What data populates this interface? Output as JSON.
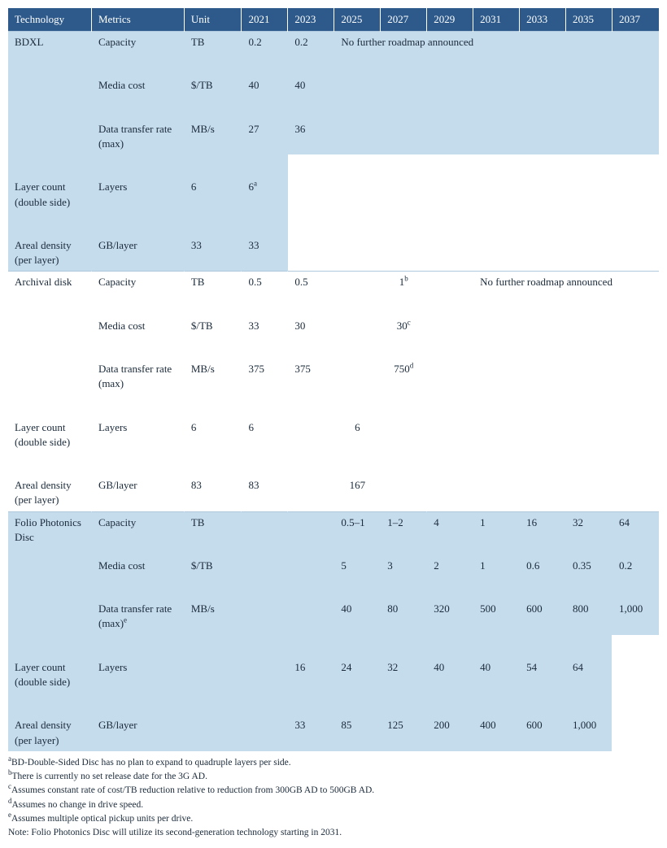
{
  "headers": {
    "technology": "Technology",
    "metrics": "Metrics",
    "unit": "Unit",
    "years": [
      "2021",
      "2023",
      "2025",
      "2027",
      "2029",
      "2031",
      "2033",
      "2035",
      "2037"
    ]
  },
  "colors": {
    "header_bg": "#2d5a8a",
    "header_fg": "#ffffff",
    "band_light": "#c5dced",
    "band_white": "#ffffff",
    "text": "#1a2a3a"
  },
  "no_roadmap_text": "No further roadmap announced",
  "technologies": [
    {
      "name": "BDXL",
      "band": "light",
      "rows": [
        {
          "metric": "Capacity",
          "unit": "TB",
          "cells": {
            "2021": "0.2",
            "2023": "0.2"
          }
        },
        {
          "metric": "Media cost",
          "unit": "$/TB",
          "cells": {
            "2021": "40",
            "2023": "40"
          }
        },
        {
          "metric": "Data transfer rate (max)",
          "unit": "MB/s",
          "cells": {
            "2021": "27",
            "2023": "36"
          }
        },
        {
          "metric": "Layer count (double side)",
          "unit": "Layers",
          "cells": {
            "2021": "6",
            "2023": "6",
            "2023_sup": "a"
          }
        },
        {
          "metric": "Areal density (per layer)",
          "unit": "GB/layer",
          "cells": {
            "2021": "33",
            "2023": "33"
          }
        }
      ],
      "no_roadmap_span_from": "2025"
    },
    {
      "name": "Archival disk",
      "band": "white",
      "rows": [
        {
          "metric": "Capacity",
          "unit": "TB",
          "cells": {
            "2021": "0.5",
            "2023": "0.5",
            "mid": "1",
            "mid_sup": "b"
          }
        },
        {
          "metric": "Media cost",
          "unit": "$/TB",
          "cells": {
            "2021": "33",
            "2023": "30",
            "mid": "30",
            "mid_sup": "c"
          }
        },
        {
          "metric": "Data transfer rate (max)",
          "unit": "MB/s",
          "cells": {
            "2021": "375",
            "2023": "375",
            "mid": "750",
            "mid_sup": "d"
          }
        },
        {
          "metric": "Layer count (double side)",
          "unit": "Layers",
          "cells": {
            "2021": "6",
            "2023": "6",
            "mid": "6"
          }
        },
        {
          "metric": "Areal density (per layer)",
          "unit": "GB/layer",
          "cells": {
            "2021": "83",
            "2023": "83",
            "mid": "167"
          }
        }
      ],
      "no_roadmap_span_from": "2031"
    },
    {
      "name": "Folio Photonics Disc",
      "band": "light",
      "rows": [
        {
          "metric": "Capacity",
          "unit": "TB",
          "cells": {
            "2025": "0.5–1",
            "2027": "1–2",
            "2029": "4",
            "2031": "1",
            "2033": "16",
            "2035": "32",
            "2037": "64"
          }
        },
        {
          "metric": "Media cost",
          "unit": "$/TB",
          "cells": {
            "2025": "5",
            "2027": "3",
            "2029": "2",
            "2031": "1",
            "2033": "0.6",
            "2035": "0.35",
            "2037": "0.2"
          }
        },
        {
          "metric": "Data transfer rate (max)",
          "metric_sup": "e",
          "unit": "MB/s",
          "cells": {
            "2025": "40",
            "2027": "80",
            "2029": "320",
            "2031": "500",
            "2033": "600",
            "2035": "800",
            "2037": "1,000"
          }
        },
        {
          "metric": "Layer count (double side)",
          "unit": "Layers",
          "cells": {
            "2025": "16",
            "2027": "24",
            "2029": "32",
            "2031": "40",
            "2033": "40",
            "2035": "54",
            "2037": "64"
          }
        },
        {
          "metric": "Areal density (per layer)",
          "unit": "GB/layer",
          "cells": {
            "2025": "33",
            "2027": "85",
            "2029": "125",
            "2031": "200",
            "2033": "400",
            "2035": "600",
            "2037": "1,000"
          }
        }
      ]
    }
  ],
  "footnotes": [
    {
      "sup": "a",
      "text": "BD-Double-Sided Disc has no plan to expand to quadruple layers per side."
    },
    {
      "sup": "b",
      "text": "There is currently no set release date for the 3G AD."
    },
    {
      "sup": "c",
      "text": "Assumes constant rate of cost/TB reduction relative to reduction from 300GB AD to 500GB AD."
    },
    {
      "sup": "d",
      "text": "Assumes no change in drive speed."
    },
    {
      "sup": "e",
      "text": "Assumes multiple optical pickup units per drive."
    }
  ],
  "note": "Note: Folio Photonics Disc will utilize its second-generation technology starting in 2031."
}
